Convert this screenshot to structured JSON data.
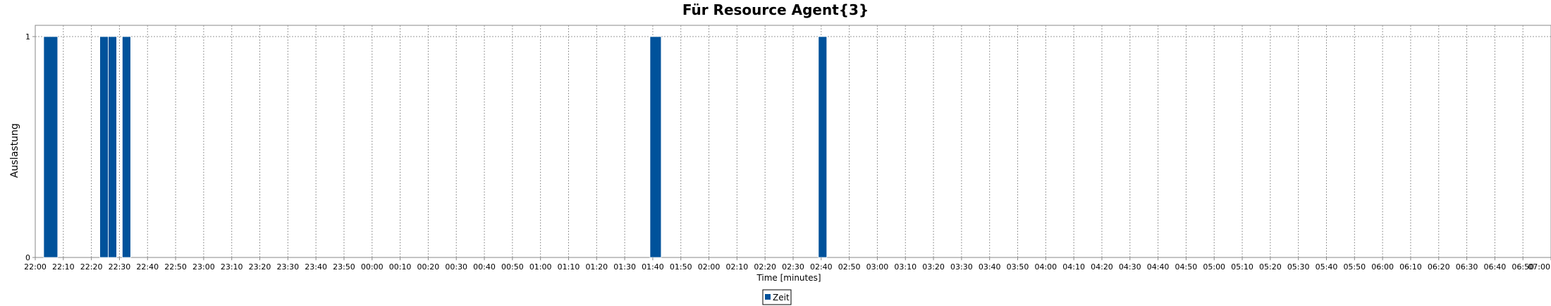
{
  "chart_data": {
    "type": "bar",
    "title": "Für Resource Agent{3}",
    "xlabel": "Time [minutes]",
    "ylabel": "Auslastung",
    "ylim": [
      0,
      1
    ],
    "yticks": [
      0,
      1
    ],
    "xlim": [
      "22:00",
      "07:00"
    ],
    "x_tick_interval_minutes": 10,
    "grid": true,
    "legend_position": "bottom-center",
    "colors": {
      "bar": "#00529b",
      "grid": "#999999",
      "axis": "#888888"
    },
    "series": [
      {
        "name": "Zeit",
        "bars": [
          {
            "start": "22:03",
            "end": "22:08",
            "value": 1
          },
          {
            "start": "22:23",
            "end": "22:26",
            "value": 1
          },
          {
            "start": "22:26",
            "end": "22:29",
            "value": 1
          },
          {
            "start": "22:31",
            "end": "22:34",
            "value": 1
          },
          {
            "start": "01:39",
            "end": "01:43",
            "value": 1
          },
          {
            "start": "02:39",
            "end": "02:42",
            "value": 1
          }
        ]
      }
    ],
    "x_tick_labels": [
      "22:00",
      "22:10",
      "22:20",
      "22:30",
      "22:40",
      "22:50",
      "23:00",
      "23:10",
      "23:20",
      "23:30",
      "23:40",
      "23:50",
      "00:00",
      "00:10",
      "00:20",
      "00:30",
      "00:40",
      "00:50",
      "01:00",
      "01:10",
      "01:20",
      "01:30",
      "01:40",
      "01:50",
      "02:00",
      "02:10",
      "02:20",
      "02:30",
      "02:40",
      "02:50",
      "03:00",
      "03:10",
      "03:20",
      "03:30",
      "03:40",
      "03:50",
      "04:00",
      "04:10",
      "04:20",
      "04:30",
      "04:40",
      "04:50",
      "05:00",
      "05:10",
      "05:20",
      "05:30",
      "05:40",
      "05:50",
      "06:00",
      "06:10",
      "06:20",
      "06:30",
      "06:40",
      "06:50",
      "07:00"
    ]
  }
}
